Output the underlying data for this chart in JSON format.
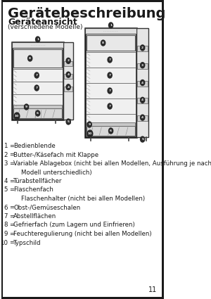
{
  "title": "Gerätebeschreibung",
  "subtitle": "Geräteansicht",
  "subtitle2": "(verschiedene Modelle)",
  "text_lines": [
    [
      "1",
      "Bedienblende"
    ],
    [
      "2",
      "Butter-/Käsefach mit Klappe"
    ],
    [
      "3",
      "Variable Ablagebox (nicht bei allen Modellen, Ausführung je nach"
    ],
    [
      "",
      "    Modell unterschiedlich)"
    ],
    [
      "4",
      "Türabstellfächer"
    ],
    [
      "5",
      "Flaschenfach"
    ],
    [
      "",
      "    Flaschenhalter (nicht bei allen Modellen)"
    ],
    [
      "6",
      "Obst-/Gemüseschalen"
    ],
    [
      "7",
      "Abstellflächen"
    ],
    [
      "8",
      "Gefrierfach (zum Lagern und Einfrieren)"
    ],
    [
      "9",
      "Feuchteregulierung (nicht bei allen Modellen)"
    ],
    [
      "10",
      "Typschild"
    ]
  ],
  "page_number": "11",
  "bg_color": "#ffffff",
  "border_color": "#1a1a1a",
  "text_color": "#1a1a1a",
  "title_fontsize": 14,
  "subtitle_fontsize": 9,
  "body_fontsize": 6.2
}
